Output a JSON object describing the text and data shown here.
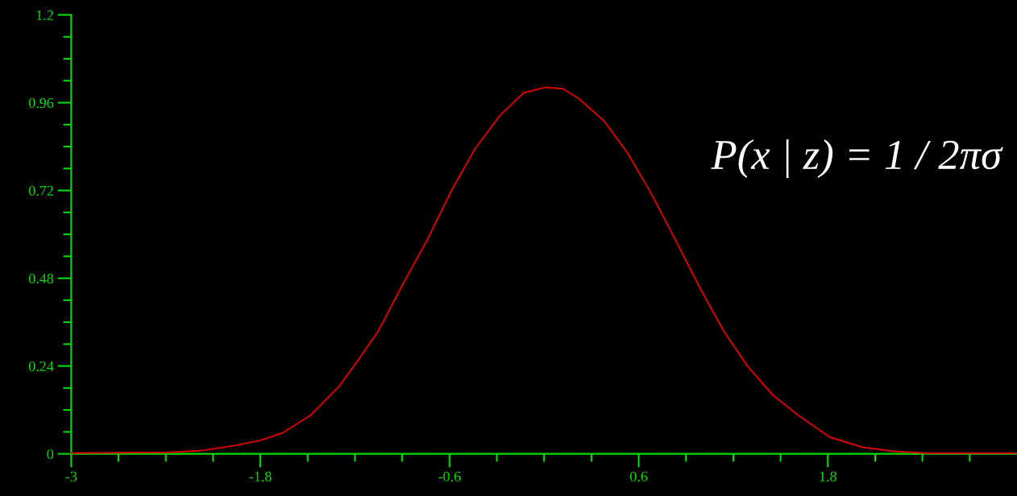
{
  "chart_data": {
    "type": "line",
    "x": [
      -3.0,
      -2.38,
      -2.17,
      -1.97,
      -1.8,
      -1.66,
      -1.48,
      -1.3,
      -1.18,
      -1.05,
      -0.9,
      -0.74,
      -0.59,
      -0.44,
      -0.28,
      -0.13,
      0.01,
      0.12,
      0.22,
      0.38,
      0.53,
      0.68,
      0.84,
      0.99,
      1.14,
      1.29,
      1.45,
      1.61,
      1.81,
      2.02,
      2.22,
      2.42,
      3.0
    ],
    "series": [
      {
        "color": "#dd0000",
        "values": [
          0.002,
          0.004,
          0.009,
          0.022,
          0.037,
          0.057,
          0.106,
          0.185,
          0.256,
          0.337,
          0.461,
          0.586,
          0.718,
          0.833,
          0.925,
          0.987,
          1.002,
          0.998,
          0.971,
          0.91,
          0.822,
          0.711,
          0.579,
          0.452,
          0.335,
          0.24,
          0.161,
          0.106,
          0.046,
          0.018,
          0.007,
          0.002,
          0.002
        ]
      }
    ],
    "xlim": [
      -3,
      3
    ],
    "ylim": [
      0,
      1.2
    ],
    "xticks": [
      -3,
      {
        "value": -2.7,
        "label": null
      },
      {
        "value": -2.4,
        "label": null
      },
      {
        "value": -2.1,
        "label": null
      },
      -1.8,
      {
        "value": -1.5,
        "label": null
      },
      {
        "value": -1.2,
        "label": null
      },
      {
        "value": -0.9,
        "label": null
      },
      -0.6,
      {
        "value": -0.3,
        "label": null
      },
      {
        "value": 0,
        "label": null
      },
      {
        "value": 0.3,
        "label": null
      },
      0.6,
      {
        "value": 0.9,
        "label": null
      },
      {
        "value": 1.2,
        "label": null
      },
      {
        "value": 1.5,
        "label": null
      },
      1.8,
      {
        "value": 2.1,
        "label": null
      },
      {
        "value": 2.4,
        "label": null
      },
      {
        "value": 2.7,
        "label": null
      }
    ],
    "yticks": [
      0,
      {
        "value": 0.06,
        "label": null
      },
      {
        "value": 0.12,
        "label": null
      },
      {
        "value": 0.18,
        "label": null
      },
      0.24,
      {
        "value": 0.3,
        "label": null
      },
      {
        "value": 0.36,
        "label": null
      },
      {
        "value": 0.42,
        "label": null
      },
      0.48,
      {
        "value": 0.54,
        "label": null
      },
      {
        "value": 0.6,
        "label": null
      },
      {
        "value": 0.66,
        "label": null
      },
      0.72,
      {
        "value": 0.78,
        "label": null
      },
      {
        "value": 0.84,
        "label": null
      },
      {
        "value": 0.9,
        "label": null
      },
      0.96,
      {
        "value": 1.02,
        "label": null
      },
      {
        "value": 1.08,
        "label": null
      },
      {
        "value": 1.14,
        "label": null
      },
      1.2
    ],
    "grid": false,
    "legend": false,
    "marker": "none",
    "line_style": "solid",
    "annotations": [
      "P(x | z) = 1 / 2πσ"
    ]
  }
}
